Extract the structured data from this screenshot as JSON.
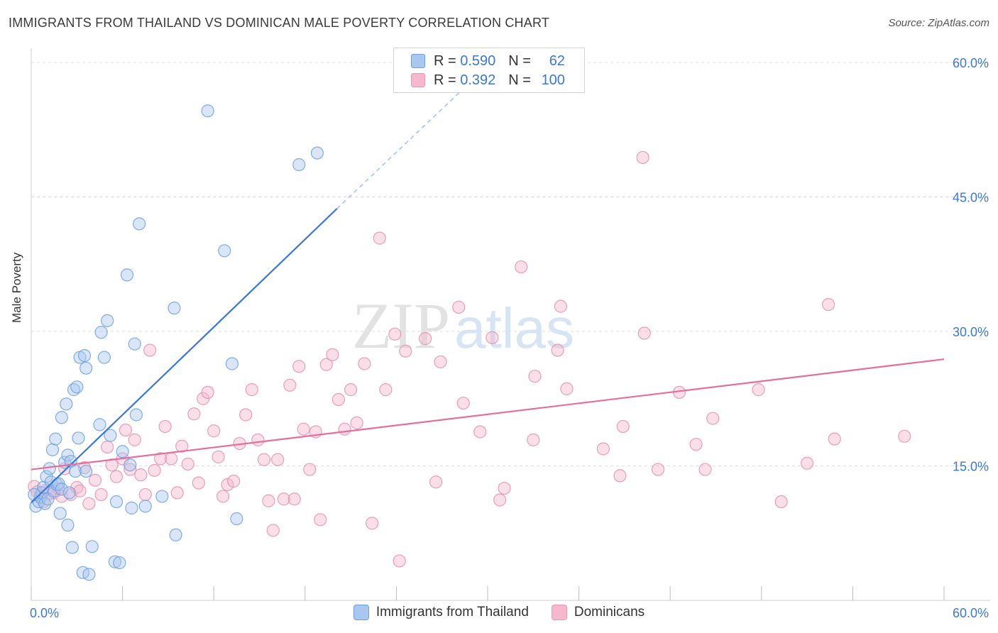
{
  "title": "IMMIGRANTS FROM THAILAND VS DOMINICAN MALE POVERTY CORRELATION CHART",
  "source": "Source: ZipAtlas.com",
  "watermark": {
    "zip": "ZIP",
    "atlas": "atlas"
  },
  "legend_top": [
    {
      "r_label": "R =",
      "r_value": "0.590",
      "n_label": "N =",
      "n_value": "62",
      "color": "#a9c8f0"
    },
    {
      "r_label": "R =",
      "r_value": "0.392",
      "n_label": "N =",
      "n_value": "100",
      "color": "#f5b8cc"
    }
  ],
  "legend_bottom": [
    {
      "label": "Immigrants from Thailand",
      "color": "#a9c8f0"
    },
    {
      "label": "Dominicans",
      "color": "#f5b8cc"
    }
  ],
  "chart_data": {
    "type": "scatter",
    "title": "IMMIGRANTS FROM THAILAND VS DOMINICAN MALE POVERTY CORRELATION CHART",
    "xlabel": "",
    "ylabel": "Male Poverty",
    "xlim": [
      0,
      60
    ],
    "ylim": [
      0,
      60
    ],
    "x_tick_labels": [
      "0.0%",
      "60.0%"
    ],
    "y_ticks": [
      15,
      30,
      45,
      60
    ],
    "y_tick_labels": [
      "15.0%",
      "30.0%",
      "45.0%",
      "60.0%"
    ],
    "grid": true,
    "series": [
      {
        "name": "Immigrants from Thailand",
        "color": "#3b78d8",
        "fill": "#a9c8f0",
        "trend": {
          "x1": 0,
          "y1": 10.9,
          "x2": 20.1,
          "y2": 43.7,
          "dash_to_x": 29.6,
          "dash_to_y": 59
        },
        "points": [
          [
            0.3,
            10.5
          ],
          [
            0.5,
            11.0
          ],
          [
            0.6,
            11.5
          ],
          [
            0.7,
            12.0
          ],
          [
            0.8,
            12.6
          ],
          [
            0.9,
            10.8
          ],
          [
            1.0,
            13.8
          ],
          [
            1.1,
            11.3
          ],
          [
            1.2,
            14.7
          ],
          [
            1.3,
            13.2
          ],
          [
            1.4,
            16.8
          ],
          [
            1.5,
            12.2
          ],
          [
            1.6,
            18.0
          ],
          [
            1.7,
            12.9
          ],
          [
            1.8,
            13.0
          ],
          [
            2.0,
            12.4
          ],
          [
            2.0,
            20.4
          ],
          [
            2.2,
            15.4
          ],
          [
            2.3,
            21.9
          ],
          [
            2.4,
            16.2
          ],
          [
            2.4,
            8.4
          ],
          [
            2.5,
            12.0
          ],
          [
            2.6,
            15.5
          ],
          [
            2.7,
            5.9
          ],
          [
            2.8,
            23.5
          ],
          [
            2.9,
            14.4
          ],
          [
            3.0,
            23.8
          ],
          [
            3.1,
            18.1
          ],
          [
            3.2,
            27.1
          ],
          [
            3.4,
            3.1
          ],
          [
            3.5,
            27.3
          ],
          [
            3.6,
            25.9
          ],
          [
            3.6,
            14.4
          ],
          [
            3.8,
            2.9
          ],
          [
            4.0,
            6.0
          ],
          [
            4.5,
            19.6
          ],
          [
            4.6,
            29.9
          ],
          [
            4.8,
            27.1
          ],
          [
            5.0,
            31.2
          ],
          [
            5.2,
            18.4
          ],
          [
            5.5,
            4.3
          ],
          [
            5.6,
            11.0
          ],
          [
            5.8,
            4.2
          ],
          [
            6.0,
            16.6
          ],
          [
            6.3,
            36.3
          ],
          [
            6.5,
            15.1
          ],
          [
            6.6,
            10.3
          ],
          [
            6.8,
            28.6
          ],
          [
            6.9,
            20.7
          ],
          [
            7.1,
            42.0
          ],
          [
            7.5,
            10.5
          ],
          [
            8.6,
            11.6
          ],
          [
            9.4,
            32.6
          ],
          [
            9.5,
            7.3
          ],
          [
            11.6,
            54.6
          ],
          [
            12.7,
            39.0
          ],
          [
            13.2,
            26.4
          ],
          [
            13.5,
            9.1
          ],
          [
            17.6,
            48.6
          ],
          [
            18.8,
            49.9
          ],
          [
            0.2,
            11.8
          ],
          [
            1.9,
            9.7
          ]
        ]
      },
      {
        "name": "Dominicans",
        "color": "#e46f9c",
        "fill": "#f5b8cc",
        "trend": {
          "x1": 0,
          "y1": 14.6,
          "x2": 60,
          "y2": 26.9
        },
        "points": [
          [
            0.2,
            12.7
          ],
          [
            0.4,
            12.1
          ],
          [
            0.6,
            11.7
          ],
          [
            0.8,
            11.0
          ],
          [
            1.0,
            12.3
          ],
          [
            1.2,
            11.9
          ],
          [
            1.5,
            12.0
          ],
          [
            1.8,
            12.5
          ],
          [
            2.0,
            11.6
          ],
          [
            2.2,
            14.7
          ],
          [
            2.6,
            11.8
          ],
          [
            3.0,
            12.6
          ],
          [
            3.2,
            12.2
          ],
          [
            3.5,
            14.8
          ],
          [
            3.8,
            10.8
          ],
          [
            4.2,
            13.4
          ],
          [
            4.6,
            11.8
          ],
          [
            5.0,
            17.1
          ],
          [
            5.3,
            15.1
          ],
          [
            5.6,
            13.8
          ],
          [
            6.0,
            15.8
          ],
          [
            6.2,
            19.0
          ],
          [
            6.5,
            14.6
          ],
          [
            6.8,
            17.9
          ],
          [
            7.2,
            14.0
          ],
          [
            7.5,
            11.8
          ],
          [
            7.8,
            27.9
          ],
          [
            8.1,
            14.5
          ],
          [
            8.5,
            15.8
          ],
          [
            8.8,
            19.4
          ],
          [
            9.2,
            15.8
          ],
          [
            9.6,
            12.0
          ],
          [
            9.9,
            17.2
          ],
          [
            10.3,
            15.2
          ],
          [
            10.7,
            20.8
          ],
          [
            11.0,
            13.1
          ],
          [
            11.3,
            22.5
          ],
          [
            11.6,
            23.2
          ],
          [
            12.0,
            18.9
          ],
          [
            12.3,
            16.0
          ],
          [
            12.6,
            11.6
          ],
          [
            12.9,
            12.9
          ],
          [
            13.3,
            13.3
          ],
          [
            13.7,
            17.5
          ],
          [
            14.1,
            20.7
          ],
          [
            14.5,
            23.5
          ],
          [
            14.9,
            17.9
          ],
          [
            15.3,
            15.7
          ],
          [
            15.6,
            11.1
          ],
          [
            15.9,
            7.8
          ],
          [
            16.2,
            15.7
          ],
          [
            16.6,
            11.3
          ],
          [
            17.0,
            24.0
          ],
          [
            17.3,
            11.3
          ],
          [
            17.6,
            26.1
          ],
          [
            17.9,
            19.1
          ],
          [
            18.3,
            14.6
          ],
          [
            18.7,
            18.8
          ],
          [
            19.0,
            9.0
          ],
          [
            19.4,
            26.3
          ],
          [
            19.8,
            27.4
          ],
          [
            20.2,
            22.4
          ],
          [
            20.6,
            19.1
          ],
          [
            21.0,
            23.5
          ],
          [
            21.4,
            19.8
          ],
          [
            21.9,
            26.4
          ],
          [
            22.4,
            8.6
          ],
          [
            22.9,
            40.4
          ],
          [
            23.3,
            23.5
          ],
          [
            23.9,
            29.7
          ],
          [
            24.2,
            4.4
          ],
          [
            24.6,
            27.8
          ],
          [
            25.9,
            29.2
          ],
          [
            26.6,
            13.2
          ],
          [
            26.9,
            26.6
          ],
          [
            28.1,
            32.7
          ],
          [
            28.4,
            22.0
          ],
          [
            29.5,
            18.8
          ],
          [
            30.3,
            29.3
          ],
          [
            30.8,
            11.2
          ],
          [
            31.1,
            12.5
          ],
          [
            32.2,
            37.2
          ],
          [
            33.0,
            17.9
          ],
          [
            33.1,
            25.0
          ],
          [
            34.6,
            27.9
          ],
          [
            34.8,
            32.8
          ],
          [
            35.2,
            23.6
          ],
          [
            37.6,
            16.9
          ],
          [
            38.7,
            13.9
          ],
          [
            38.9,
            19.4
          ],
          [
            40.2,
            49.4
          ],
          [
            40.3,
            29.8
          ],
          [
            41.2,
            14.6
          ],
          [
            42.6,
            23.2
          ],
          [
            43.7,
            17.4
          ],
          [
            44.3,
            14.6
          ],
          [
            44.8,
            20.3
          ],
          [
            47.8,
            23.5
          ],
          [
            49.3,
            11.0
          ],
          [
            51.0,
            15.3
          ]
        ]
      }
    ],
    "extra_pink_points": [
      [
        52.4,
        33.0
      ],
      [
        52.8,
        18.0
      ],
      [
        57.4,
        18.3
      ]
    ]
  }
}
